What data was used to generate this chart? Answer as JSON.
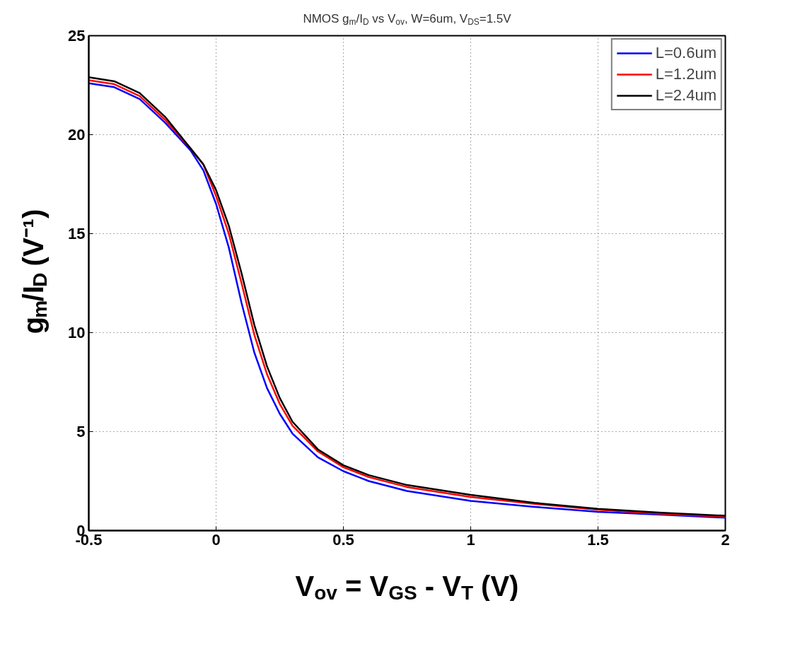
{
  "chart_data": {
    "type": "line",
    "title": "NMOS g$_{m}$/I$_{D}$ vs V$_{ov}$, W=6um, V$_{DS}$=1.5V",
    "xlabel": "V$_{ov}$ = V$_{GS}$ - V$_{T}$ (V)",
    "ylabel": "g$_{m}$/I$_{D}$ (V⁻¹)",
    "x": [
      -0.5,
      -0.4,
      -0.3,
      -0.2,
      -0.1,
      -0.05,
      0,
      0.05,
      0.1,
      0.15,
      0.2,
      0.25,
      0.3,
      0.4,
      0.5,
      0.6,
      0.75,
      1,
      1.25,
      1.5,
      1.75,
      2
    ],
    "series": [
      {
        "name": "L=0.6um",
        "color": "#0000ff",
        "values": [
          22.6,
          22.4,
          21.8,
          20.6,
          19.2,
          18.2,
          16.5,
          14.3,
          11.5,
          9.0,
          7.2,
          5.9,
          4.9,
          3.7,
          3.0,
          2.5,
          2.0,
          1.5,
          1.2,
          0.95,
          0.8,
          0.65
        ]
      },
      {
        "name": "L=1.2um",
        "color": "#ff0000",
        "values": [
          22.75,
          22.55,
          21.95,
          20.75,
          19.3,
          18.5,
          16.9,
          15.0,
          12.5,
          9.9,
          7.9,
          6.4,
          5.3,
          4.0,
          3.2,
          2.7,
          2.2,
          1.7,
          1.35,
          1.05,
          0.85,
          0.7
        ]
      },
      {
        "name": "L=2.4um",
        "color": "#000000",
        "values": [
          22.9,
          22.7,
          22.1,
          20.9,
          19.3,
          18.5,
          17.2,
          15.4,
          13.0,
          10.4,
          8.3,
          6.7,
          5.5,
          4.1,
          3.3,
          2.8,
          2.3,
          1.8,
          1.4,
          1.1,
          0.9,
          0.75
        ]
      }
    ],
    "xlim": [
      -0.5,
      2
    ],
    "ylim": [
      0,
      25
    ],
    "xticks": [
      -0.5,
      0,
      0.5,
      1,
      1.5,
      2
    ],
    "yticks": [
      0,
      5,
      10,
      15,
      20,
      25
    ],
    "grid": true,
    "legend": "top right",
    "line_style": "solid"
  }
}
